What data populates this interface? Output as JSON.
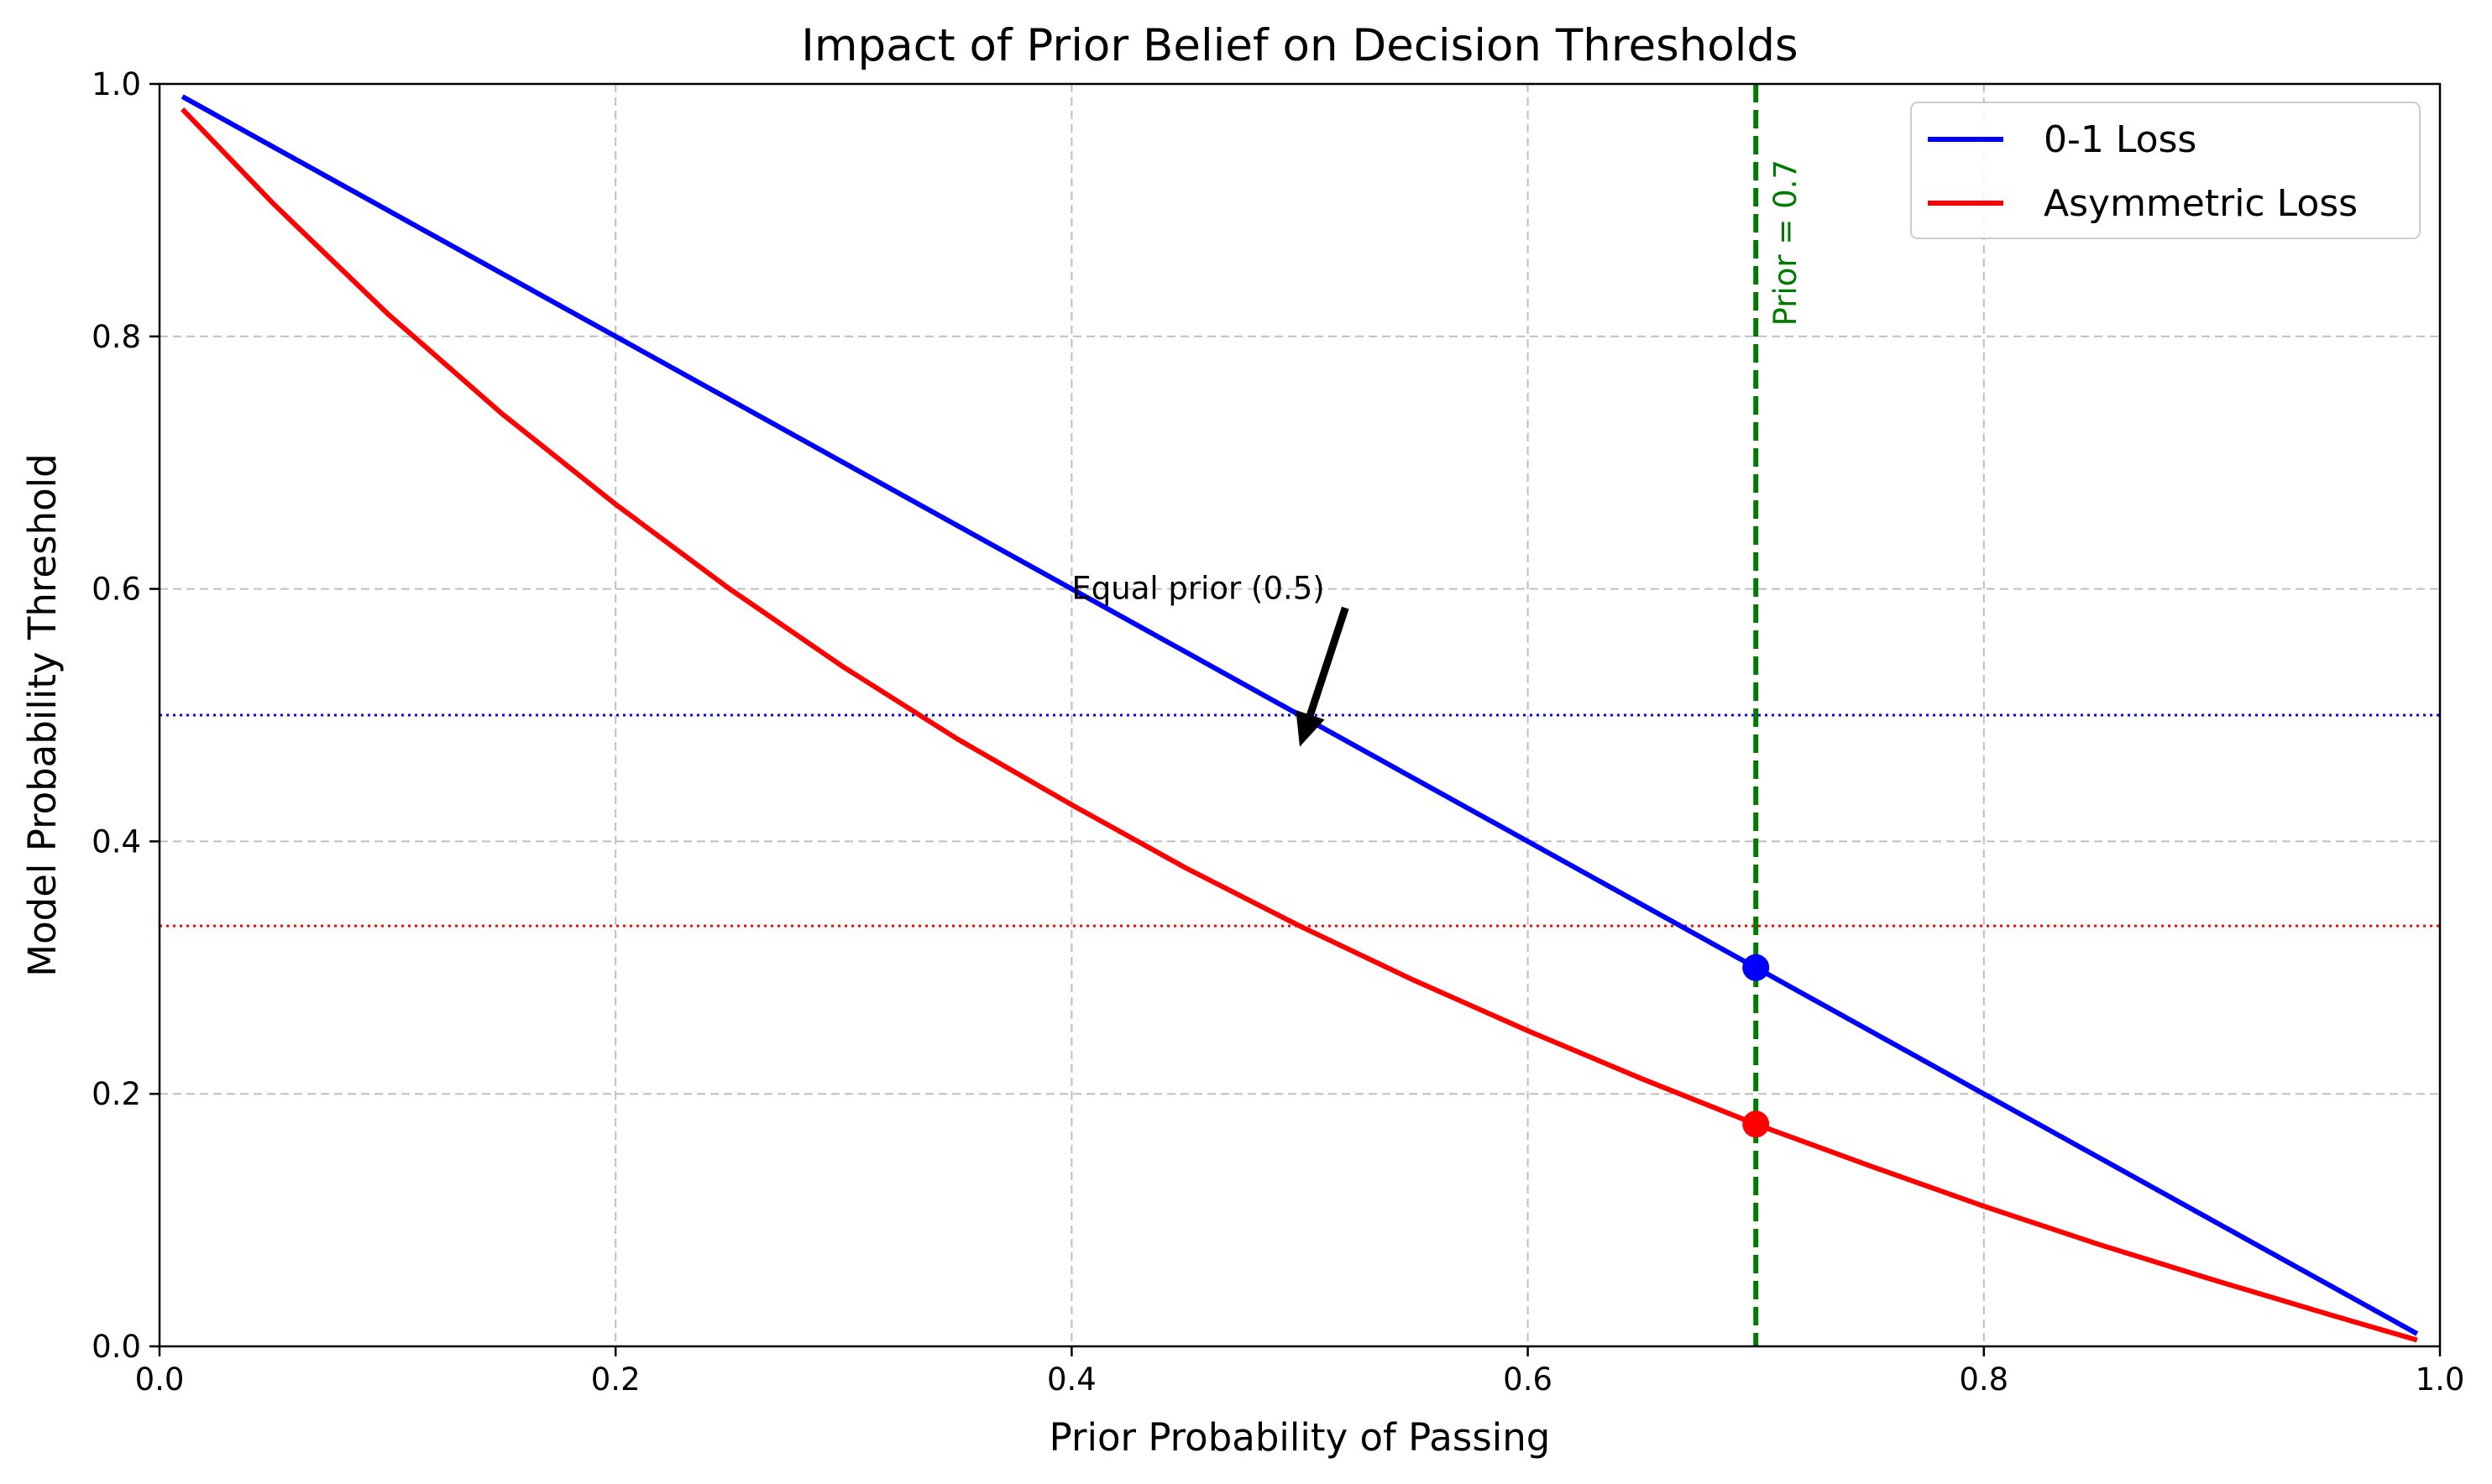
{
  "chart_data": {
    "type": "line",
    "title": "Impact of Prior Belief on Decision Thresholds",
    "xlabel": "Prior Probability of Passing",
    "ylabel": "Model Probability Threshold",
    "xlim": [
      0.0,
      1.0
    ],
    "ylim": [
      0.0,
      1.0
    ],
    "xticks": [
      0.0,
      0.2,
      0.4,
      0.6,
      0.8,
      1.0
    ],
    "yticks": [
      0.0,
      0.2,
      0.4,
      0.6,
      0.8,
      1.0
    ],
    "xtick_labels": [
      "0.0",
      "0.2",
      "0.4",
      "0.6",
      "0.8",
      "1.0"
    ],
    "ytick_labels": [
      "0.0",
      "0.2",
      "0.4",
      "0.6",
      "0.8",
      "1.0"
    ],
    "grid": true,
    "legend_position": "upper right",
    "series": [
      {
        "name": "0-1 Loss",
        "color": "#0000ff",
        "x": [
          0.01,
          0.05,
          0.1,
          0.15,
          0.2,
          0.25,
          0.3,
          0.35,
          0.4,
          0.45,
          0.5,
          0.55,
          0.6,
          0.65,
          0.7,
          0.75,
          0.8,
          0.85,
          0.9,
          0.95,
          0.99
        ],
        "y": [
          0.99,
          0.95,
          0.9,
          0.85,
          0.8,
          0.75,
          0.7,
          0.65,
          0.6,
          0.55,
          0.5,
          0.45,
          0.4,
          0.35,
          0.3,
          0.25,
          0.2,
          0.15,
          0.1,
          0.05,
          0.01
        ]
      },
      {
        "name": "Asymmetric Loss",
        "color": "#ff0000",
        "x": [
          0.01,
          0.05,
          0.1,
          0.15,
          0.2,
          0.25,
          0.3,
          0.35,
          0.4,
          0.45,
          0.5,
          0.55,
          0.6,
          0.65,
          0.7,
          0.75,
          0.8,
          0.85,
          0.9,
          0.95,
          0.99
        ],
        "y": [
          0.98,
          0.905,
          0.818,
          0.739,
          0.667,
          0.6,
          0.538,
          0.481,
          0.429,
          0.379,
          0.333,
          0.29,
          0.25,
          0.212,
          0.176,
          0.143,
          0.111,
          0.081,
          0.053,
          0.026,
          0.005
        ]
      }
    ],
    "reference_lines": [
      {
        "orientation": "horizontal",
        "value": 0.5,
        "color": "#0000ff",
        "style": "dotted"
      },
      {
        "orientation": "horizontal",
        "value": 0.333,
        "color": "#ff0000",
        "style": "dotted"
      },
      {
        "orientation": "vertical",
        "value": 0.7,
        "color": "#007a00",
        "style": "dashed",
        "label": "Prior = 0.7"
      }
    ],
    "markers": [
      {
        "x": 0.7,
        "y": 0.3,
        "color": "#0000ff"
      },
      {
        "x": 0.7,
        "y": 0.176,
        "color": "#ff0000"
      }
    ],
    "annotations": [
      {
        "text": "Equal prior (0.5)",
        "text_x": 0.4,
        "text_y": 0.6,
        "arrow_from": [
          0.52,
          0.585
        ],
        "arrow_to": [
          0.5,
          0.475
        ]
      }
    ]
  }
}
